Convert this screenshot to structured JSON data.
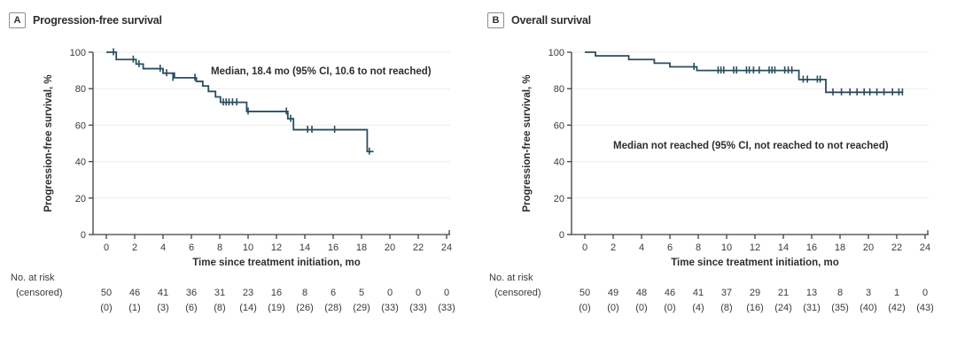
{
  "colors": {
    "curve": "#2a4d5f",
    "grid": "#ebebeb",
    "axis": "#404040",
    "text": "#3a3a3a",
    "title": "#2e2e2e",
    "panel_box_border": "#8f8f8f",
    "background": "#ffffff"
  },
  "chart_data": [
    {
      "type": "line",
      "subtype": "kaplan-meier-step",
      "panel": "A",
      "title": "Progression-free survival",
      "xlabel": "Time since treatment initiation, mo",
      "ylabel": "Progression-free survival, %",
      "annotation": "Median, 18.4 mo (95% CI, 10.6 to not reached)",
      "risk_label1": "No. at risk",
      "risk_label2": "(censored)",
      "xlim": [
        0,
        24
      ],
      "ylim": [
        0,
        100
      ],
      "x_ticks": [
        0,
        2,
        4,
        6,
        8,
        10,
        12,
        14,
        16,
        18,
        20,
        22,
        24
      ],
      "y_ticks": [
        0,
        20,
        40,
        60,
        80,
        100
      ],
      "grid": "horizontal gridlines at 20,40,60,80,100",
      "legend_position": "none",
      "steps": [
        [
          0,
          100
        ],
        [
          0.7,
          96
        ],
        [
          2.1,
          93.5
        ],
        [
          2.6,
          91
        ],
        [
          4.0,
          88.5
        ],
        [
          4.8,
          86
        ],
        [
          6.35,
          84
        ],
        [
          6.8,
          81.5
        ],
        [
          7.2,
          78.5
        ],
        [
          7.7,
          75.5
        ],
        [
          8.05,
          72.5
        ],
        [
          9.9,
          67.5
        ],
        [
          12.8,
          63.5
        ],
        [
          13.2,
          57.5
        ],
        [
          18.4,
          45.5
        ]
      ],
      "curve_end": 18.85,
      "censor_marks": [
        [
          0.5,
          100
        ],
        [
          1.9,
          96
        ],
        [
          2.3,
          93.5
        ],
        [
          3.8,
          91
        ],
        [
          4.25,
          88.5
        ],
        [
          4.7,
          86
        ],
        [
          6.25,
          86
        ],
        [
          8.25,
          72.5
        ],
        [
          8.45,
          72.5
        ],
        [
          8.65,
          72.5
        ],
        [
          8.9,
          72.5
        ],
        [
          9.2,
          72.5
        ],
        [
          10.0,
          67.5
        ],
        [
          12.7,
          67.5
        ],
        [
          13.0,
          63.5
        ],
        [
          14.2,
          57.5
        ],
        [
          14.5,
          57.5
        ],
        [
          16.1,
          57.5
        ],
        [
          18.55,
          45.5
        ]
      ],
      "no_at_risk": [
        50,
        46,
        41,
        36,
        31,
        23,
        16,
        8,
        6,
        5,
        0,
        0,
        0
      ],
      "censored": [
        "(0)",
        "(1)",
        "(3)",
        "(6)",
        "(8)",
        "(14)",
        "(19)",
        "(26)",
        "(28)",
        "(29)",
        "(33)",
        "(33)",
        "(33)"
      ]
    },
    {
      "type": "line",
      "subtype": "kaplan-meier-step",
      "panel": "B",
      "title": "Overall survival",
      "xlabel": "Time since treatment initiation, mo",
      "ylabel": "Progression-free survival, %",
      "annotation": "Median not reached (95% CI, not reached to not reached)",
      "risk_label1": "No. at risk",
      "risk_label2": "(censored)",
      "xlim": [
        0,
        24
      ],
      "ylim": [
        0,
        100
      ],
      "x_ticks": [
        0,
        2,
        4,
        6,
        8,
        10,
        12,
        14,
        16,
        18,
        20,
        22,
        24
      ],
      "y_ticks": [
        0,
        20,
        40,
        60,
        80,
        100
      ],
      "grid": "horizontal gridlines at 20,40,60,80,100",
      "legend_position": "none",
      "steps": [
        [
          0,
          100
        ],
        [
          0.75,
          98
        ],
        [
          3.1,
          96
        ],
        [
          4.9,
          94
        ],
        [
          6.0,
          92
        ],
        [
          7.9,
          90
        ],
        [
          15.1,
          85
        ],
        [
          17.0,
          78
        ]
      ],
      "curve_end": 22.45,
      "censor_marks": [
        [
          7.7,
          92
        ],
        [
          9.4,
          90
        ],
        [
          9.6,
          90
        ],
        [
          9.8,
          90
        ],
        [
          10.5,
          90
        ],
        [
          10.7,
          90
        ],
        [
          11.4,
          90
        ],
        [
          11.6,
          90
        ],
        [
          11.9,
          90
        ],
        [
          12.3,
          90
        ],
        [
          13.0,
          90
        ],
        [
          13.2,
          90
        ],
        [
          13.4,
          90
        ],
        [
          14.1,
          90
        ],
        [
          14.35,
          90
        ],
        [
          14.6,
          90
        ],
        [
          15.4,
          85
        ],
        [
          15.7,
          85
        ],
        [
          16.4,
          85
        ],
        [
          16.6,
          85
        ],
        [
          17.5,
          78
        ],
        [
          18.1,
          78
        ],
        [
          18.7,
          78
        ],
        [
          19.2,
          78
        ],
        [
          19.7,
          78
        ],
        [
          20.1,
          78
        ],
        [
          20.6,
          78
        ],
        [
          21.1,
          78
        ],
        [
          21.7,
          78
        ],
        [
          22.15,
          78
        ],
        [
          22.4,
          78
        ]
      ],
      "no_at_risk": [
        50,
        49,
        48,
        46,
        41,
        37,
        29,
        21,
        13,
        8,
        3,
        1,
        0
      ],
      "censored": [
        "(0)",
        "(0)",
        "(0)",
        "(0)",
        "(4)",
        "(8)",
        "(16)",
        "(24)",
        "(31)",
        "(35)",
        "(40)",
        "(42)",
        "(43)"
      ]
    }
  ]
}
